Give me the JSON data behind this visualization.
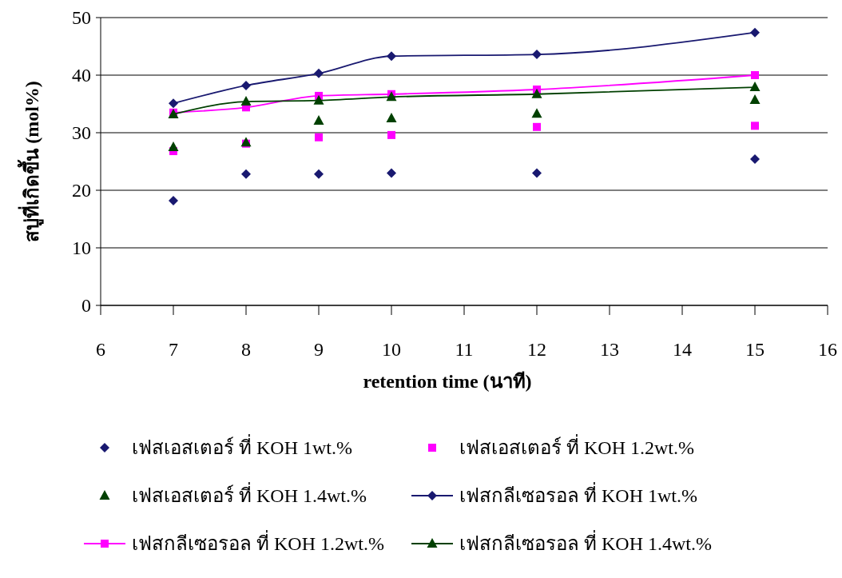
{
  "chart_data": {
    "type": "scatter",
    "xlabel": "retention time (นาที)",
    "ylabel": "สบู่ที่เกิดขึ้น (mol%)",
    "x": [
      7,
      8,
      9,
      10,
      12,
      15
    ],
    "series": [
      {
        "name": "เฟสเอสเตอร์ ที่ KOH 1wt.%",
        "marker": "diamond",
        "color": "#191970",
        "values": [
          18.2,
          22.8,
          22.8,
          23.0,
          23.0,
          25.4
        ]
      },
      {
        "name": "เฟสเอสเตอร์ ที่ KOH 1.2wt.%",
        "marker": "square",
        "color": "#ff00ff",
        "values": [
          26.8,
          28.1,
          29.2,
          29.6,
          31.0,
          31.2
        ]
      },
      {
        "name": "เฟสเอสเตอร์ ที่ KOH 1.4wt.%",
        "marker": "triangle",
        "color": "#004000",
        "values": [
          27.5,
          28.3,
          32.1,
          32.5,
          33.3,
          35.7
        ]
      },
      {
        "name": "เฟสกลีเซอรอล ที่ KOH 1wt.%",
        "type": "line",
        "marker": "diamond",
        "color": "#191970",
        "values": [
          35.1,
          38.2,
          40.3,
          43.3,
          43.6,
          47.4
        ]
      },
      {
        "name": "เฟสกลีเซอรอล ที่ KOH 1.2wt.%",
        "type": "line",
        "marker": "square",
        "color": "#ff00ff",
        "values": [
          33.5,
          34.4,
          36.4,
          36.7,
          37.5,
          40.0
        ]
      },
      {
        "name": "เฟสกลีเซอรอล ที่ KOH 1.4wt.%",
        "type": "line",
        "marker": "triangle",
        "color": "#004000",
        "values": [
          33.2,
          35.4,
          35.6,
          36.2,
          36.7,
          37.9
        ]
      }
    ],
    "xlim": [
      6,
      16
    ],
    "xticks": [
      6,
      7,
      8,
      9,
      10,
      11,
      12,
      13,
      14,
      15,
      16
    ],
    "ylim": [
      0,
      50
    ],
    "yticks": [
      0,
      10,
      20,
      30,
      40,
      50
    ],
    "grid": "y",
    "legend": "bottom"
  }
}
